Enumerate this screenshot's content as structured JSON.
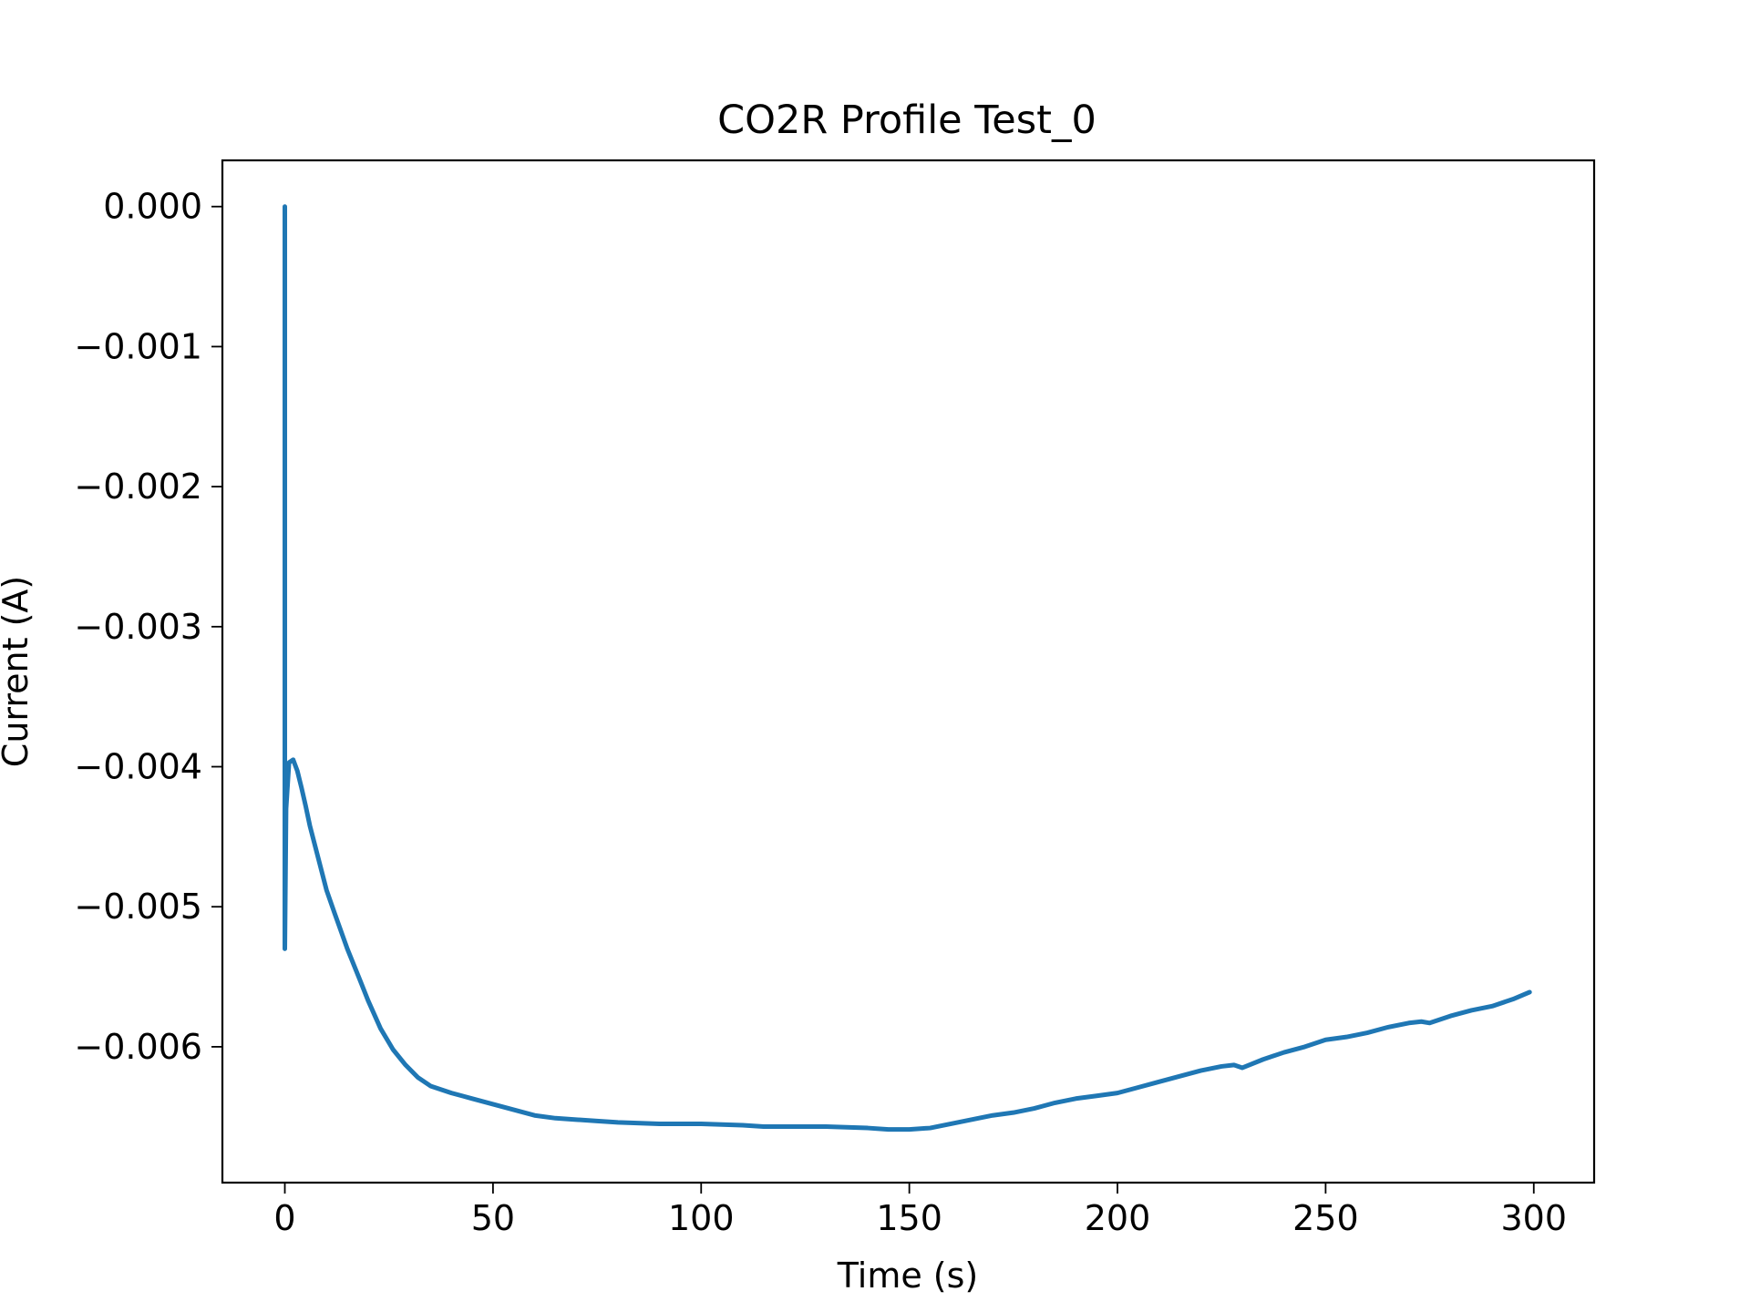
{
  "chart_data": {
    "type": "line",
    "title": "CO2R Profile Test_0",
    "xlabel": "Time (s)",
    "ylabel": "Current (A)",
    "xlim": [
      -15,
      314.5
    ],
    "ylim": [
      -0.00697,
      0.00033
    ],
    "xticks": [
      0,
      50,
      100,
      150,
      200,
      250,
      300
    ],
    "xtick_labels": [
      "0",
      "50",
      "100",
      "150",
      "200",
      "250",
      "300"
    ],
    "yticks": [
      0.0,
      -0.001,
      -0.002,
      -0.003,
      -0.004,
      -0.005,
      -0.006
    ],
    "ytick_labels": [
      "0.000",
      "−0.001",
      "−0.002",
      "−0.003",
      "−0.004",
      "−0.005",
      "−0.006"
    ],
    "grid": false,
    "series": [
      {
        "color": "#1f77b4",
        "x": [
          0,
          0,
          0.3,
          1,
          2,
          3,
          4,
          5,
          6,
          8,
          10,
          12,
          15,
          18,
          20,
          23,
          26,
          29,
          32,
          35,
          40,
          45,
          50,
          55,
          60,
          65,
          70,
          75,
          80,
          90,
          100,
          110,
          115,
          120,
          130,
          140,
          145,
          150,
          155,
          160,
          165,
          170,
          175,
          180,
          185,
          190,
          195,
          200,
          205,
          210,
          215,
          220,
          225,
          228,
          230,
          235,
          240,
          245,
          250,
          255,
          260,
          265,
          270,
          273,
          275,
          280,
          285,
          290,
          295,
          299
        ],
        "y": [
          0.0,
          -0.0053,
          -0.0043,
          -0.00397,
          -0.00395,
          -0.00403,
          -0.00415,
          -0.00428,
          -0.00442,
          -0.00465,
          -0.00488,
          -0.00505,
          -0.0053,
          -0.00552,
          -0.00567,
          -0.00587,
          -0.00602,
          -0.00613,
          -0.00622,
          -0.00628,
          -0.00633,
          -0.00637,
          -0.00641,
          -0.00645,
          -0.00649,
          -0.00651,
          -0.00652,
          -0.00653,
          -0.00654,
          -0.00655,
          -0.00655,
          -0.00656,
          -0.00657,
          -0.00657,
          -0.00657,
          -0.00658,
          -0.00659,
          -0.00659,
          -0.00658,
          -0.00655,
          -0.00652,
          -0.00649,
          -0.00647,
          -0.00644,
          -0.0064,
          -0.00637,
          -0.00635,
          -0.00633,
          -0.00629,
          -0.00625,
          -0.00621,
          -0.00617,
          -0.00614,
          -0.00613,
          -0.00615,
          -0.00609,
          -0.00604,
          -0.006,
          -0.00595,
          -0.00593,
          -0.0059,
          -0.00586,
          -0.00583,
          -0.00582,
          -0.00583,
          -0.00578,
          -0.00574,
          -0.00571,
          -0.00566,
          -0.00561
        ]
      }
    ]
  }
}
